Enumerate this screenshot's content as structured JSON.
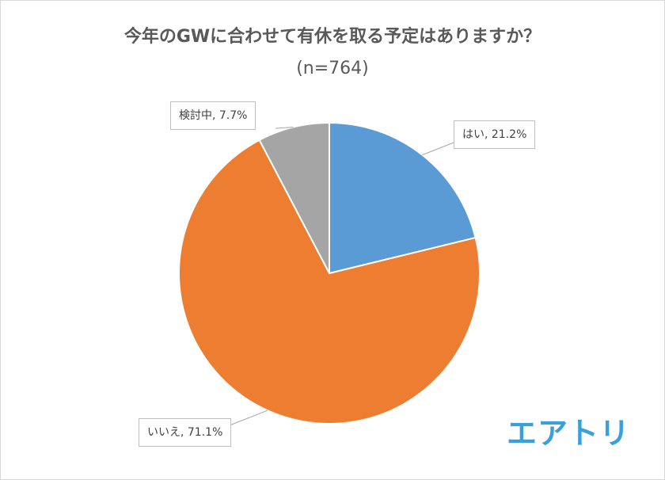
{
  "chart_data": {
    "type": "pie",
    "title": "今年のGWに合わせて有休を取る予定はありますか？",
    "subtitle": "(n=764)",
    "slices": [
      {
        "label": "はい",
        "value": 21.2,
        "display": "はい, 21.2%",
        "color": "#5b9bd5"
      },
      {
        "label": "いいえ",
        "value": 71.1,
        "display": "いいえ, 71.1%",
        "color": "#ed7d31"
      },
      {
        "label": "検討中",
        "value": 7.7,
        "display": "検討中, 7.7%",
        "color": "#a5a5a5"
      }
    ]
  },
  "brand": {
    "logo_text": "エアトリ",
    "color": "#3aa0dc"
  }
}
